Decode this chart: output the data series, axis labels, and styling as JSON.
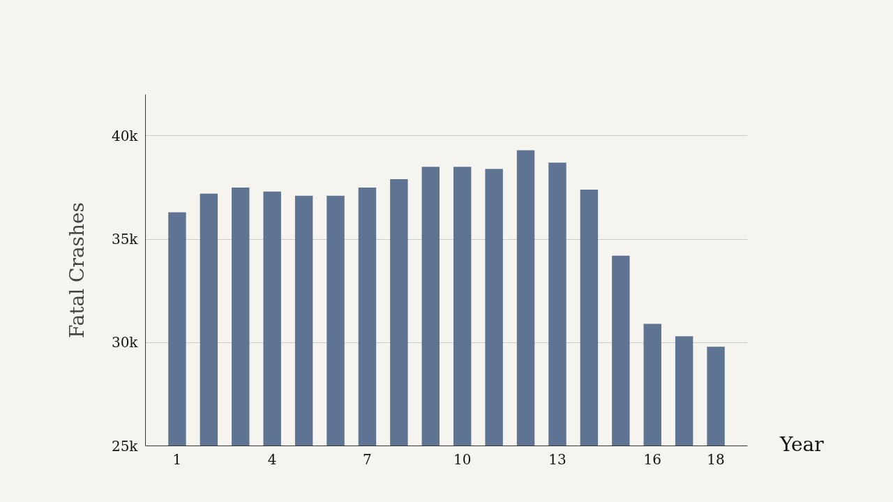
{
  "chart_data": {
    "type": "bar",
    "xlabel": "Year",
    "ylabel": "Fatal Crashes",
    "x": [
      1,
      2,
      3,
      4,
      5,
      6,
      7,
      8,
      9,
      10,
      11,
      12,
      13,
      14,
      15,
      16,
      17,
      18
    ],
    "values": [
      36300,
      37200,
      37500,
      37300,
      37100,
      37100,
      37500,
      37900,
      38500,
      38500,
      38400,
      39300,
      38700,
      37400,
      34200,
      30900,
      30300,
      29800
    ],
    "color": "#5a6f8f",
    "xlim": [
      0,
      19
    ],
    "xticks": [
      1,
      4,
      7,
      10,
      13,
      16,
      18
    ],
    "ylim": [
      25000,
      42000
    ],
    "yticks": [
      {
        "value": 25000,
        "label": "25k"
      },
      {
        "value": 30000,
        "label": "30k"
      },
      {
        "value": 35000,
        "label": "35k"
      },
      {
        "value": 40000,
        "label": "40k"
      }
    ],
    "grid": "y"
  }
}
